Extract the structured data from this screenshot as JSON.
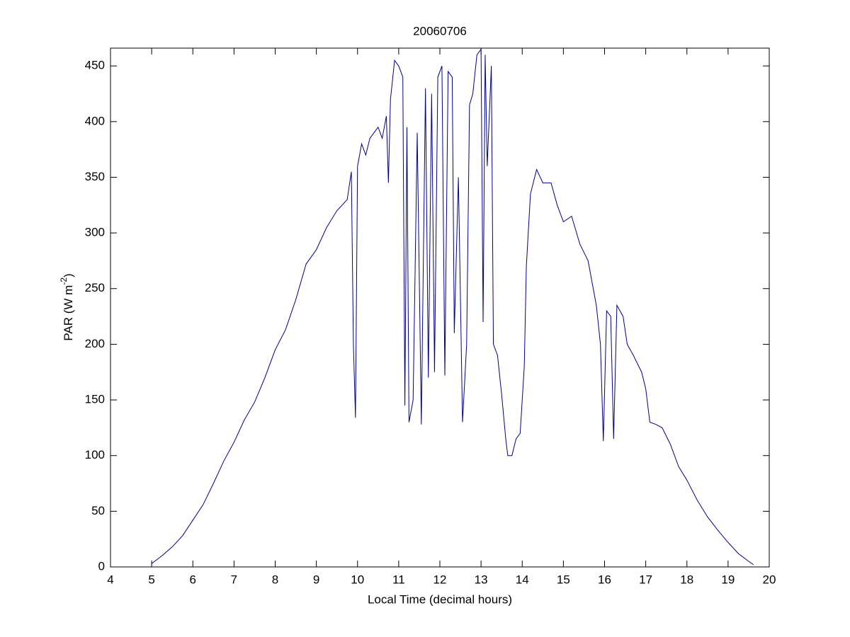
{
  "chart_data": {
    "type": "line",
    "title": "20060706",
    "xlabel": "Local Time (decimal hours)",
    "ylabel": [
      "PAR (W m",
      "-2",
      ")"
    ],
    "xlim": [
      4,
      20
    ],
    "xticks": [
      4,
      5,
      6,
      7,
      8,
      9,
      10,
      11,
      12,
      13,
      14,
      15,
      16,
      17,
      18,
      19,
      20
    ],
    "ylim": [
      0,
      466
    ],
    "yticks": [
      0,
      50,
      100,
      150,
      200,
      250,
      300,
      350,
      400,
      450
    ],
    "series": [
      {
        "color": "#00008b",
        "x": [
          5.0,
          5.25,
          5.5,
          5.75,
          6.0,
          6.25,
          6.5,
          6.75,
          7.0,
          7.25,
          7.5,
          7.75,
          8.0,
          8.25,
          8.5,
          8.75,
          9.0,
          9.25,
          9.5,
          9.75,
          9.85,
          9.9,
          9.95,
          10.0,
          10.1,
          10.2,
          10.3,
          10.5,
          10.6,
          10.7,
          10.75,
          10.8,
          10.9,
          11.0,
          11.1,
          11.15,
          11.2,
          11.25,
          11.35,
          11.45,
          11.55,
          11.65,
          11.72,
          11.8,
          11.87,
          11.95,
          12.05,
          12.12,
          12.2,
          12.3,
          12.35,
          12.45,
          12.55,
          12.65,
          12.72,
          12.8,
          12.9,
          13.0,
          13.05,
          13.1,
          13.15,
          13.25,
          13.3,
          13.4,
          13.5,
          13.6,
          13.65,
          13.75,
          13.85,
          13.95,
          14.05,
          14.1,
          14.2,
          14.35,
          14.5,
          14.7,
          14.85,
          15.0,
          15.2,
          15.4,
          15.6,
          15.8,
          15.9,
          15.97,
          16.05,
          16.15,
          16.22,
          16.3,
          16.45,
          16.55,
          16.7,
          16.9,
          17.0,
          17.1,
          17.25,
          17.4,
          17.6,
          17.8,
          18.0,
          18.25,
          18.5,
          18.75,
          19.0,
          19.25,
          19.5,
          19.62
        ],
        "values": [
          3,
          10,
          18,
          28,
          42,
          56,
          75,
          95,
          112,
          132,
          148,
          170,
          195,
          213,
          240,
          272,
          285,
          305,
          320,
          330,
          355,
          200,
          134,
          360,
          380,
          370,
          385,
          395,
          385,
          405,
          345,
          420,
          455,
          450,
          440,
          145,
          395,
          130,
          150,
          390,
          128,
          430,
          170,
          425,
          175,
          440,
          450,
          172,
          445,
          440,
          210,
          350,
          130,
          200,
          415,
          425,
          460,
          465,
          220,
          460,
          360,
          450,
          200,
          190,
          155,
          115,
          100,
          100,
          115,
          120,
          180,
          270,
          335,
          357,
          345,
          345,
          325,
          310,
          315,
          290,
          275,
          235,
          200,
          113,
          230,
          225,
          115,
          235,
          225,
          200,
          190,
          175,
          160,
          130,
          128,
          125,
          110,
          90,
          78,
          60,
          45,
          33,
          22,
          12,
          5,
          2
        ]
      }
    ]
  }
}
